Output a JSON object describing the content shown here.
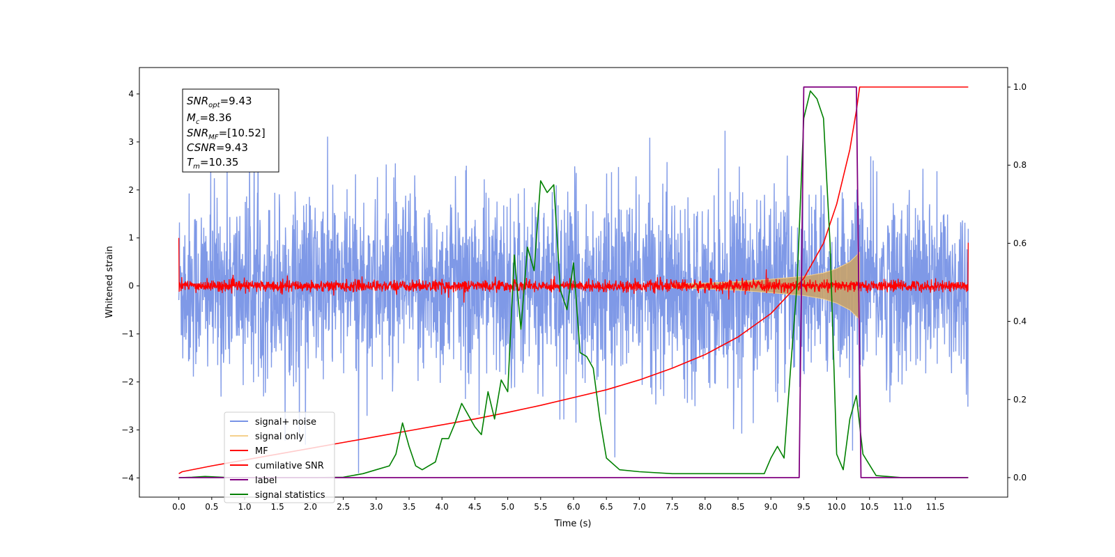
{
  "chart_data": {
    "type": "line",
    "xlabel": "Time (s)",
    "ylabel_left": "Whitened strain",
    "ylabel_right": "",
    "xlim": [
      -0.6,
      12.6
    ],
    "ylim_left": [
      -4.4,
      4.55
    ],
    "ylim_right": [
      -0.05,
      1.05
    ],
    "x_ticks": [
      "0.0",
      "0.5",
      "1.0",
      "1.5",
      "2.0",
      "2.5",
      "3.0",
      "3.5",
      "4.0",
      "4.5",
      "5.0",
      "5.5",
      "6.0",
      "6.5",
      "7.0",
      "7.5",
      "8.0",
      "8.5",
      "9.0",
      "9.5",
      "10.0",
      "10.5",
      "11.0",
      "11.5"
    ],
    "y_ticks_left": [
      "4",
      "3",
      "2",
      "1",
      "0",
      "−1",
      "−2",
      "−3",
      "−4"
    ],
    "y_ticks_right": [
      "1.0",
      "0.8",
      "0.6",
      "0.4",
      "0.2",
      "0.0"
    ],
    "grid": false,
    "info_box": {
      "snr_opt": {
        "base": "SNR",
        "sub": "opt",
        "value": "=9.43"
      },
      "mc": {
        "base": "M",
        "sub": "c",
        "value": "=8.36"
      },
      "snr_mf": {
        "base": "SNR",
        "sub": "MF",
        "value": "=[10.52]"
      },
      "csnr": {
        "base": "CSNR",
        "sub": "",
        "value": "=9.43"
      },
      "tm": {
        "base": "T",
        "sub": "m",
        "value": "=10.35"
      }
    },
    "legend": {
      "location": "lower-left",
      "entries": [
        {
          "label": "signal+ noise",
          "color": "#7893e6"
        },
        {
          "label": "signal only",
          "color": "#f5d08c"
        },
        {
          "label": "MF",
          "color": "#ff0000"
        },
        {
          "label": "cumilative SNR",
          "color": "#ff0000"
        },
        {
          "label": "label",
          "color": "#800080"
        },
        {
          "label": "signal statistics",
          "color": "#008000"
        }
      ]
    },
    "series": [
      {
        "name": "signal+ noise",
        "axis": "left",
        "color": "#7893e6",
        "description_kind": "noise_band",
        "x_range": [
          0.0,
          12.0
        ],
        "envelope_approx": {
          "upper_typical": 2.2,
          "lower_typical": -2.3,
          "peak_max": 4.15,
          "peak_min": -3.9
        }
      },
      {
        "name": "signal only",
        "axis": "left",
        "color": "#f5d08c",
        "x": [
          7.5,
          8.0,
          8.5,
          9.0,
          9.5,
          9.8,
          10.0,
          10.2,
          10.35
        ],
        "envelope": [
          0.04,
          0.06,
          0.09,
          0.14,
          0.2,
          0.27,
          0.36,
          0.5,
          0.7
        ]
      },
      {
        "name": "MF",
        "axis": "left",
        "color": "#ff0000",
        "x_range": [
          0.0,
          12.0
        ],
        "start_value": 1.0,
        "end_value": 0.9,
        "typical_amplitude": 0.1
      },
      {
        "name": "cumilative SNR",
        "axis": "right",
        "color": "#ff0000",
        "x": [
          0.0,
          0.05,
          0.5,
          1.0,
          1.5,
          2.0,
          2.5,
          3.0,
          3.5,
          4.0,
          4.5,
          5.0,
          5.5,
          6.0,
          6.5,
          7.0,
          7.5,
          8.0,
          8.5,
          9.0,
          9.5,
          9.8,
          10.0,
          10.2,
          10.3,
          10.35,
          12.0
        ],
        "y": [
          0.01,
          0.015,
          0.03,
          0.045,
          0.06,
          0.075,
          0.09,
          0.105,
          0.12,
          0.135,
          0.15,
          0.167,
          0.185,
          0.205,
          0.225,
          0.25,
          0.28,
          0.315,
          0.36,
          0.42,
          0.51,
          0.6,
          0.7,
          0.84,
          0.94,
          1.0,
          1.0
        ]
      },
      {
        "name": "label",
        "axis": "right",
        "color": "#800080",
        "x": [
          0.0,
          9.43,
          9.5,
          10.3,
          10.37,
          12.0
        ],
        "y": [
          0.0,
          0.0,
          1.0,
          1.0,
          0.0,
          0.0
        ]
      },
      {
        "name": "signal statistics",
        "axis": "right",
        "color": "#008000",
        "x": [
          0.0,
          0.2,
          0.4,
          0.8,
          1.5,
          2.0,
          2.5,
          2.8,
          3.0,
          3.2,
          3.3,
          3.4,
          3.5,
          3.6,
          3.7,
          3.8,
          3.9,
          4.0,
          4.1,
          4.2,
          4.3,
          4.4,
          4.5,
          4.6,
          4.7,
          4.8,
          4.9,
          5.0,
          5.1,
          5.2,
          5.3,
          5.4,
          5.5,
          5.6,
          5.7,
          5.8,
          5.9,
          6.0,
          6.1,
          6.2,
          6.3,
          6.4,
          6.5,
          6.7,
          7.0,
          7.5,
          8.0,
          8.5,
          8.9,
          9.0,
          9.1,
          9.2,
          9.3,
          9.4,
          9.5,
          9.6,
          9.7,
          9.8,
          9.9,
          10.0,
          10.1,
          10.2,
          10.3,
          10.4,
          10.6,
          11.0,
          12.0
        ],
        "y": [
          0.0,
          0.001,
          0.003,
          0.0,
          0.0,
          0.0,
          0.001,
          0.01,
          0.02,
          0.03,
          0.06,
          0.14,
          0.08,
          0.03,
          0.02,
          0.03,
          0.04,
          0.1,
          0.1,
          0.14,
          0.19,
          0.16,
          0.13,
          0.11,
          0.22,
          0.15,
          0.25,
          0.22,
          0.57,
          0.38,
          0.59,
          0.53,
          0.76,
          0.73,
          0.75,
          0.48,
          0.43,
          0.55,
          0.32,
          0.31,
          0.28,
          0.15,
          0.05,
          0.02,
          0.015,
          0.01,
          0.01,
          0.01,
          0.01,
          0.05,
          0.08,
          0.05,
          0.28,
          0.5,
          0.92,
          0.99,
          0.97,
          0.92,
          0.6,
          0.06,
          0.02,
          0.15,
          0.21,
          0.06,
          0.005,
          0.0,
          0.0
        ]
      }
    ]
  }
}
